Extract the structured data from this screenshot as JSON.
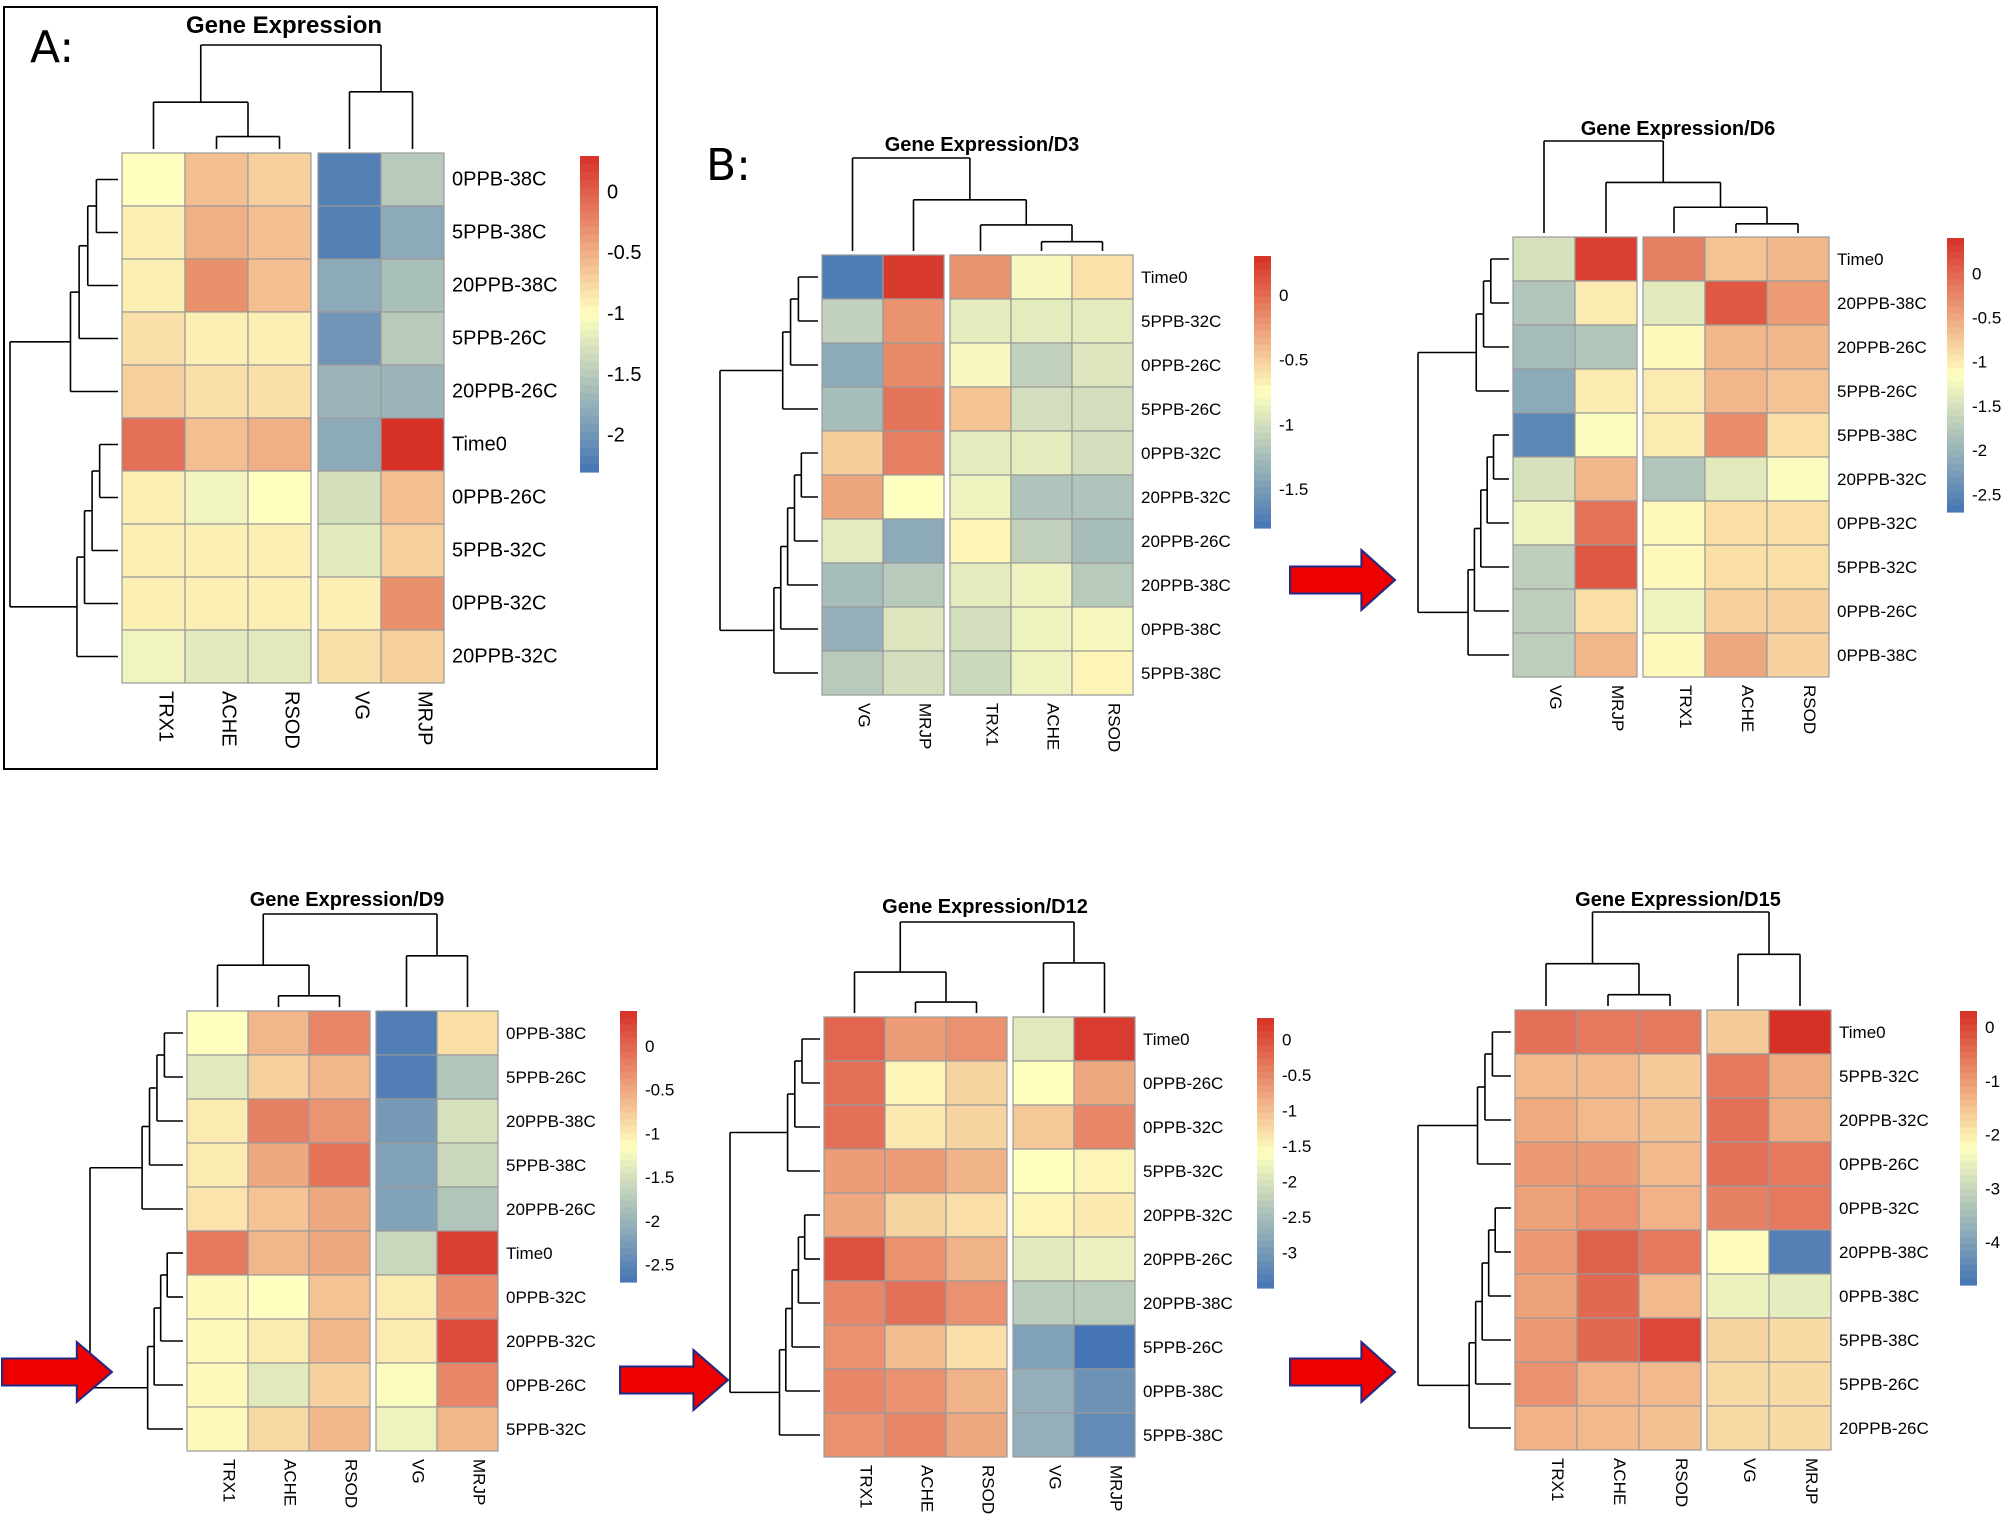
{
  "figure": {
    "panel_a_letter": "A:",
    "panel_b_letter": "B:",
    "color_scale": {
      "high": "#d73027",
      "mid": "#ffffbf",
      "low": "#4575b4"
    }
  },
  "chart_data": [
    {
      "type": "heatmap",
      "title": "Gene Expression",
      "columns": [
        "TRX1",
        "ACHE",
        "RSOD",
        "VG",
        "MRJP"
      ],
      "rows": [
        "0PPB-38C",
        "5PPB-38C",
        "20PPB-38C",
        "5PPB-26C",
        "20PPB-26C",
        "Time0",
        "0PPB-26C",
        "5PPB-32C",
        "0PPB-32C",
        "20PPB-32C"
      ],
      "values": [
        [
          -1.0,
          -0.6,
          -0.7,
          -2.2,
          -1.5
        ],
        [
          -0.9,
          -0.5,
          -0.6,
          -2.2,
          -1.8
        ],
        [
          -0.9,
          -0.3,
          -0.6,
          -1.8,
          -1.6
        ],
        [
          -0.8,
          -0.9,
          -0.9,
          -2.0,
          -1.5
        ],
        [
          -0.7,
          -0.8,
          -0.8,
          -1.7,
          -1.7
        ],
        [
          -0.1,
          -0.6,
          -0.5,
          -1.8,
          0.3
        ],
        [
          -0.9,
          -1.1,
          -1.0,
          -1.3,
          -0.6
        ],
        [
          -0.9,
          -0.9,
          -0.9,
          -1.2,
          -0.7
        ],
        [
          -0.9,
          -0.9,
          -0.9,
          -0.9,
          -0.3
        ],
        [
          -1.1,
          -1.2,
          -1.2,
          -0.8,
          -0.7
        ]
      ],
      "range": [
        -2.3,
        0.3
      ],
      "legend_ticks": [
        0,
        -0.5,
        -1,
        -1.5,
        -2
      ],
      "column_split": 3
    },
    {
      "type": "heatmap",
      "title": "Gene Expression/D3",
      "columns": [
        "VG",
        "MRJP",
        "TRX1",
        "ACHE",
        "RSOD"
      ],
      "rows": [
        "Time0",
        "5PPB-32C",
        "0PPB-26C",
        "5PPB-26C",
        "0PPB-32C",
        "20PPB-32C",
        "20PPB-26C",
        "20PPB-38C",
        "0PPB-38C",
        "5PPB-38C"
      ],
      "values": [
        [
          -1.75,
          0.25,
          -0.2,
          -0.8,
          -0.6
        ],
        [
          -1.1,
          -0.2,
          -0.9,
          -0.9,
          -0.9
        ],
        [
          -1.4,
          -0.15,
          -0.8,
          -1.1,
          -0.95
        ],
        [
          -1.25,
          -0.05,
          -0.45,
          -1.0,
          -1.0
        ],
        [
          -0.5,
          -0.1,
          -0.9,
          -0.9,
          -1.0
        ],
        [
          -0.3,
          -0.75,
          -0.85,
          -1.2,
          -1.2
        ],
        [
          -0.9,
          -1.4,
          -0.7,
          -1.1,
          -1.25
        ],
        [
          -1.25,
          -1.15,
          -0.9,
          -0.85,
          -1.15
        ],
        [
          -1.35,
          -0.95,
          -1.0,
          -0.85,
          -0.8
        ],
        [
          -1.15,
          -1.0,
          -1.05,
          -0.85,
          -0.7
        ]
      ],
      "range": [
        -1.8,
        0.3
      ],
      "legend_ticks": [
        0,
        -0.5,
        -1,
        -1.5
      ],
      "column_split": 2
    },
    {
      "type": "heatmap",
      "title": "Gene Expression/D6",
      "columns": [
        "VG",
        "MRJP",
        "TRX1",
        "ACHE",
        "RSOD"
      ],
      "rows": [
        "Time0",
        "20PPB-38C",
        "20PPB-26C",
        "5PPB-26C",
        "5PPB-38C",
        "20PPB-32C",
        "0PPB-32C",
        "5PPB-32C",
        "0PPB-26C",
        "0PPB-38C"
      ],
      "values": [
        [
          -1.5,
          0.3,
          -0.2,
          -0.7,
          -0.6
        ],
        [
          -1.8,
          -1.0,
          -1.4,
          0.1,
          -0.4
        ],
        [
          -1.9,
          -1.8,
          -1.1,
          -0.6,
          -0.6
        ],
        [
          -2.1,
          -1.0,
          -1.0,
          -0.6,
          -0.7
        ],
        [
          -2.5,
          -1.2,
          -1.0,
          -0.3,
          -0.9
        ],
        [
          -1.5,
          -0.6,
          -1.8,
          -1.4,
          -1.2
        ],
        [
          -1.3,
          -0.1,
          -1.1,
          -0.9,
          -0.9
        ],
        [
          -1.7,
          0.1,
          -1.1,
          -0.9,
          -0.9
        ],
        [
          -1.7,
          -0.9,
          -1.3,
          -0.8,
          -0.8
        ],
        [
          -1.7,
          -0.6,
          -1.1,
          -0.5,
          -0.8
        ]
      ],
      "range": [
        -2.7,
        0.4
      ],
      "legend_ticks": [
        0,
        -0.5,
        -1,
        -1.5,
        -2,
        -2.5
      ],
      "column_split": 2
    },
    {
      "type": "heatmap",
      "title": "Gene Expression/D9",
      "columns": [
        "TRX1",
        "ACHE",
        "RSOD",
        "VG",
        "MRJP"
      ],
      "rows": [
        "0PPB-38C",
        "5PPB-26C",
        "20PPB-38C",
        "5PPB-38C",
        "20PPB-26C",
        "Time0",
        "0PPB-32C",
        "20PPB-32C",
        "0PPB-26C",
        "5PPB-32C"
      ],
      "values": [
        [
          -1.15,
          -0.6,
          -0.25,
          -2.6,
          -0.9
        ],
        [
          -1.4,
          -0.8,
          -0.6,
          -2.6,
          -1.8
        ],
        [
          -1.0,
          -0.2,
          -0.35,
          -2.3,
          -1.5
        ],
        [
          -1.0,
          -0.5,
          -0.1,
          -2.2,
          -1.6
        ],
        [
          -0.95,
          -0.7,
          -0.5,
          -2.2,
          -1.8
        ],
        [
          -0.15,
          -0.6,
          -0.5,
          -1.6,
          0.3
        ],
        [
          -1.1,
          -1.15,
          -0.7,
          -1.0,
          -0.3
        ],
        [
          -1.1,
          -1.0,
          -0.6,
          -1.0,
          0.2
        ],
        [
          -1.1,
          -1.4,
          -0.8,
          -1.2,
          -0.25
        ],
        [
          -1.1,
          -0.85,
          -0.6,
          -1.3,
          -0.6
        ]
      ],
      "range": [
        -2.7,
        0.4
      ],
      "legend_ticks": [
        0,
        -0.5,
        -1,
        -1.5,
        -2,
        -2.5
      ],
      "column_split": 3
    },
    {
      "type": "heatmap",
      "title": "Gene Expression/D12",
      "columns": [
        "TRX1",
        "ACHE",
        "RSOD",
        "VG",
        "MRJP"
      ],
      "rows": [
        "Time0",
        "0PPB-26C",
        "0PPB-32C",
        "5PPB-32C",
        "20PPB-32C",
        "20PPB-26C",
        "20PPB-38C",
        "5PPB-26C",
        "0PPB-38C",
        "5PPB-38C"
      ],
      "values": [
        [
          -0.2,
          -0.7,
          -0.6,
          -1.9,
          0.2
        ],
        [
          -0.3,
          -1.5,
          -1.2,
          -1.6,
          -0.8
        ],
        [
          -0.3,
          -1.4,
          -1.2,
          -1.1,
          -0.5
        ],
        [
          -0.7,
          -0.7,
          -0.9,
          -1.6,
          -1.5
        ],
        [
          -0.8,
          -1.2,
          -1.3,
          -1.5,
          -1.4
        ],
        [
          0.0,
          -0.6,
          -0.9,
          -1.9,
          -1.8
        ],
        [
          -0.5,
          -0.3,
          -0.6,
          -2.3,
          -2.3
        ],
        [
          -0.6,
          -1.0,
          -1.3,
          -2.9,
          -3.5
        ],
        [
          -0.5,
          -0.6,
          -0.9,
          -2.7,
          -3.1
        ],
        [
          -0.6,
          -0.5,
          -0.8,
          -2.7,
          -3.2
        ]
      ],
      "range": [
        -3.5,
        0.3
      ],
      "legend_ticks": [
        0,
        -0.5,
        -1,
        -1.5,
        -2,
        -2.5,
        -3
      ],
      "column_split": 3
    },
    {
      "type": "heatmap",
      "title": "Gene Expression/D15",
      "columns": [
        "TRX1",
        "ACHE",
        "RSOD",
        "VG",
        "MRJP"
      ],
      "rows": [
        "Time0",
        "5PPB-32C",
        "20PPB-32C",
        "0PPB-26C",
        "0PPB-32C",
        "20PPB-38C",
        "0PPB-38C",
        "5PPB-38C",
        "5PPB-26C",
        "20PPB-26C"
      ],
      "values": [
        [
          -0.5,
          -0.6,
          -0.6,
          -1.6,
          0.3
        ],
        [
          -1.4,
          -1.4,
          -1.6,
          -0.6,
          -1.2
        ],
        [
          -1.2,
          -1.4,
          -1.5,
          -0.5,
          -1.2
        ],
        [
          -1.0,
          -1.0,
          -1.4,
          -0.5,
          -0.6
        ],
        [
          -1.1,
          -0.9,
          -1.3,
          -0.7,
          -0.6
        ],
        [
          -1.0,
          -0.3,
          -0.6,
          -2.2,
          -4.6
        ],
        [
          -1.1,
          -0.4,
          -1.4,
          -2.5,
          -2.6
        ],
        [
          -1.0,
          -0.4,
          0.0,
          -1.7,
          -1.8
        ],
        [
          -0.9,
          -1.3,
          -1.4,
          -1.8,
          -1.8
        ],
        [
          -1.3,
          -1.4,
          -1.5,
          -1.8,
          -1.8
        ]
      ],
      "range": [
        -4.8,
        0.3
      ],
      "legend_ticks": [
        0,
        -1,
        -2,
        -3,
        -4
      ],
      "column_split": 3
    }
  ]
}
